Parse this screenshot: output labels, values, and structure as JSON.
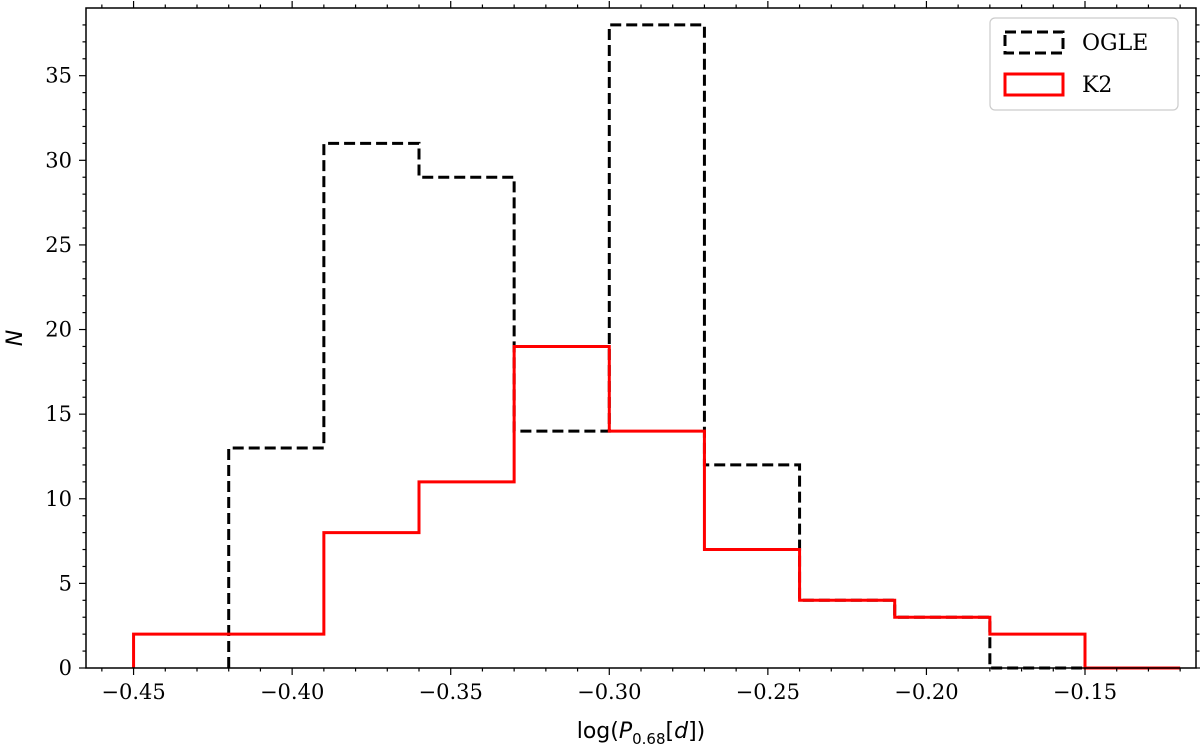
{
  "chart_data": {
    "type": "histogram",
    "title": "",
    "xlabel": {
      "prefix": "log(",
      "var": "P",
      "sub": "0.68",
      "bracket": "[",
      "unit": "d",
      "suffix": "])"
    },
    "ylabel": "N",
    "xlim": [
      -0.465,
      -0.115
    ],
    "ylim": [
      0,
      39
    ],
    "xticks": [
      -0.45,
      -0.4,
      -0.35,
      -0.3,
      -0.25,
      -0.2,
      -0.15
    ],
    "xtick_labels": [
      "−0.45",
      "−0.40",
      "−0.35",
      "−0.30",
      "−0.25",
      "−0.20",
      "−0.15"
    ],
    "yticks": [
      0,
      5,
      10,
      15,
      20,
      25,
      30,
      35
    ],
    "ytick_labels": [
      "0",
      "5",
      "10",
      "15",
      "20",
      "25",
      "30",
      "35"
    ],
    "grid": false,
    "legend_position": "top-right",
    "series": [
      {
        "name": "OGLE",
        "color": "#000000",
        "style": "dashed",
        "bin_edges": [
          -0.42,
          -0.39,
          -0.36,
          -0.33,
          -0.3,
          -0.27,
          -0.24,
          -0.21,
          -0.18,
          -0.15
        ],
        "counts": [
          13,
          31,
          29,
          14,
          38,
          12,
          4,
          3,
          0
        ]
      },
      {
        "name": "K2",
        "color": "#ff0000",
        "style": "solid",
        "bin_edges": [
          -0.45,
          -0.42,
          -0.39,
          -0.36,
          -0.33,
          -0.3,
          -0.27,
          -0.24,
          -0.21,
          -0.18,
          -0.15,
          -0.12
        ],
        "counts": [
          2,
          2,
          8,
          11,
          19,
          14,
          7,
          4,
          3,
          2,
          0
        ]
      }
    ]
  }
}
